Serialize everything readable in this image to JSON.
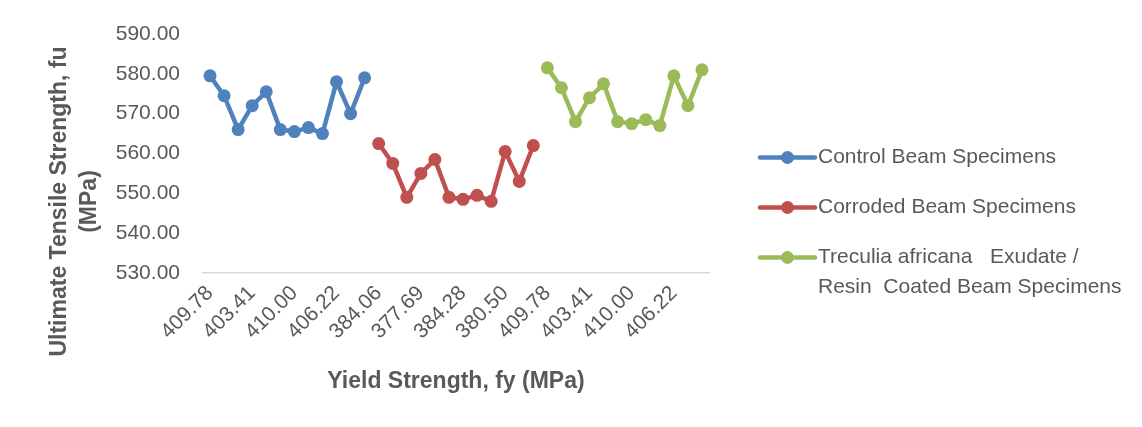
{
  "chart_data": {
    "type": "line",
    "xlabel": "Yield Strength, fy (MPa)",
    "ylabel": "Ultimate Tensile Strength, fu (MPa)",
    "categories": [
      "409.78",
      null,
      null,
      "403.41",
      null,
      null,
      "410.00",
      null,
      null,
      "406.22",
      null,
      null,
      "384.06",
      null,
      null,
      "377.69",
      null,
      null,
      "384.28",
      null,
      null,
      "380.50",
      null,
      null,
      "409.78",
      null,
      null,
      "403.41",
      null,
      null,
      "410.00",
      null,
      null,
      "406.22",
      null,
      null
    ],
    "series": [
      {
        "name": "Control Beam Specimens",
        "color": "#4f81bd",
        "values": [
          579.5,
          574.5,
          566,
          572,
          575.5,
          566,
          565.5,
          566.5,
          565,
          578,
          570,
          579,
          null,
          null,
          null,
          null,
          null,
          null,
          null,
          null,
          null,
          null,
          null,
          null,
          null,
          null,
          null,
          null,
          null,
          null,
          null,
          null,
          null,
          null,
          null,
          null
        ]
      },
      {
        "name": "Corroded Beam Specimens",
        "color": "#c0504d",
        "values": [
          null,
          null,
          null,
          null,
          null,
          null,
          null,
          null,
          null,
          null,
          null,
          null,
          562.5,
          557.5,
          549,
          555,
          558.5,
          549,
          548.5,
          549.5,
          548,
          560.5,
          553,
          562,
          null,
          null,
          null,
          null,
          null,
          null,
          null,
          null,
          null,
          null,
          null,
          null
        ]
      },
      {
        "name": "Treculia africana   Exudate / Resin  Coated Beam Specimens",
        "color": "#9bbb59",
        "values": [
          null,
          null,
          null,
          null,
          null,
          null,
          null,
          null,
          null,
          null,
          null,
          null,
          null,
          null,
          null,
          null,
          null,
          null,
          null,
          null,
          null,
          null,
          null,
          null,
          581.5,
          576.5,
          568,
          574,
          577.5,
          568,
          567.5,
          568.5,
          567,
          579.5,
          572,
          581
        ]
      }
    ],
    "ylim": [
      530,
      590
    ],
    "yticks": [
      {
        "value": 530,
        "label": "530.00"
      },
      {
        "value": 540,
        "label": "540.00"
      },
      {
        "value": 550,
        "label": "550.00"
      },
      {
        "value": 560,
        "label": "560.00"
      },
      {
        "value": 570,
        "label": "570.00"
      },
      {
        "value": 580,
        "label": "580.00"
      },
      {
        "value": 590,
        "label": "590.00"
      }
    ],
    "grid": false,
    "legend": "right",
    "marker": "circle",
    "line_style": "solid"
  }
}
